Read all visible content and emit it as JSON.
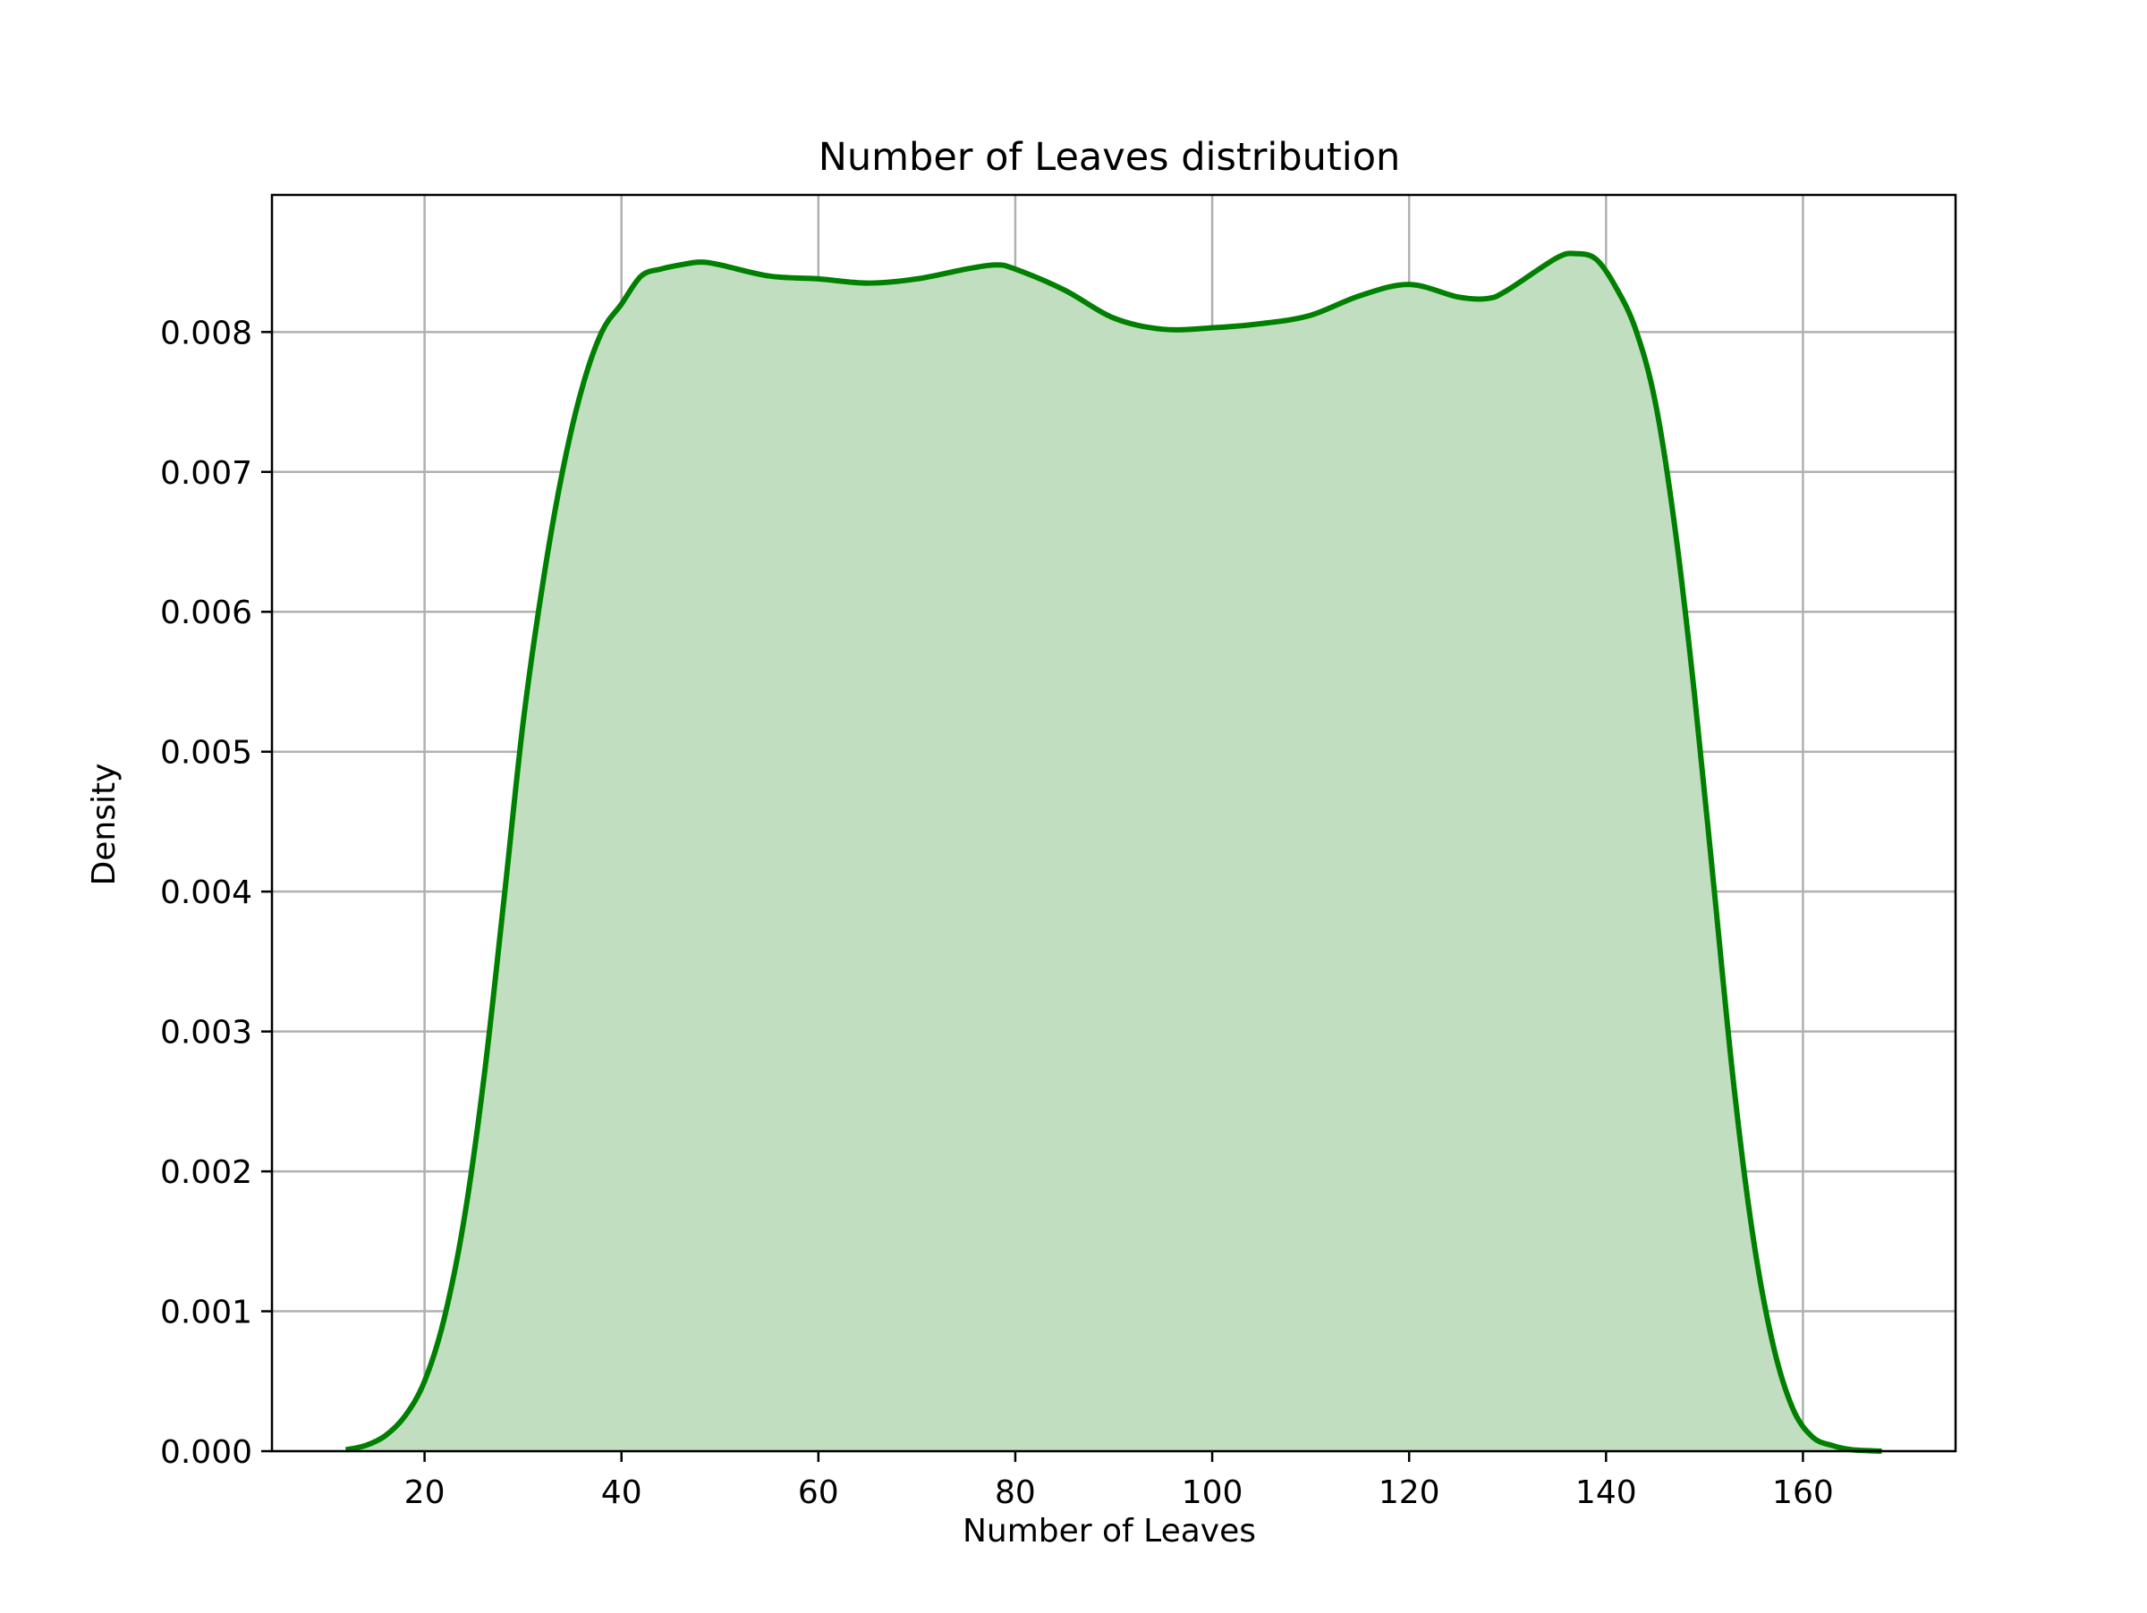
{
  "chart_data": {
    "type": "area",
    "title": "Number of Leaves distribution",
    "xlabel": "Number of Leaves",
    "ylabel": "Density",
    "xlim": [
      4.5,
      175.5
    ],
    "ylim": [
      0.0,
      0.00898
    ],
    "xticks": [
      20,
      40,
      60,
      80,
      100,
      120,
      140,
      160
    ],
    "xtick_labels": [
      "20",
      "40",
      "60",
      "80",
      "100",
      "120",
      "140",
      "160"
    ],
    "yticks": [
      0.0,
      0.001,
      0.002,
      0.003,
      0.004,
      0.005,
      0.006,
      0.007,
      0.008
    ],
    "ytick_labels": [
      "0.000",
      "0.001",
      "0.002",
      "0.003",
      "0.004",
      "0.005",
      "0.006",
      "0.007",
      "0.008"
    ],
    "grid": true,
    "legend": false,
    "colors": {
      "line": "#008000",
      "fill": "#c1dfc0",
      "grid": "#b0b0b0",
      "frame": "#000000"
    },
    "series": [
      {
        "x": [
          12,
          14,
          16,
          18,
          20,
          22,
          24,
          26,
          28,
          30,
          32,
          34,
          36,
          38,
          40,
          42,
          44,
          46,
          48,
          50,
          55,
          60,
          65,
          70,
          75,
          78,
          80,
          85,
          90,
          95,
          100,
          105,
          110,
          115,
          120,
          125,
          128,
          130,
          135,
          137,
          139,
          141,
          143,
          145,
          147,
          149,
          151,
          153,
          155,
          157,
          159,
          161,
          163,
          165,
          168
        ],
        "y": [
          1e-05,
          4e-05,
          0.00011,
          0.00025,
          0.0005,
          0.00095,
          0.00165,
          0.00265,
          0.0039,
          0.0052,
          0.0062,
          0.007,
          0.0076,
          0.008,
          0.0082,
          0.0084,
          0.00845,
          0.00848,
          0.0085,
          0.00848,
          0.0084,
          0.00838,
          0.00835,
          0.00838,
          0.00845,
          0.00848,
          0.00845,
          0.0083,
          0.0081,
          0.00802,
          0.00803,
          0.00806,
          0.00812,
          0.00826,
          0.00834,
          0.00825,
          0.00824,
          0.0083,
          0.00853,
          0.00856,
          0.00852,
          0.00832,
          0.00802,
          0.0075,
          0.0066,
          0.0054,
          0.004,
          0.0026,
          0.0015,
          0.00075,
          0.0003,
          0.0001,
          4e-05,
          1e-05,
          0.0
        ]
      }
    ]
  }
}
